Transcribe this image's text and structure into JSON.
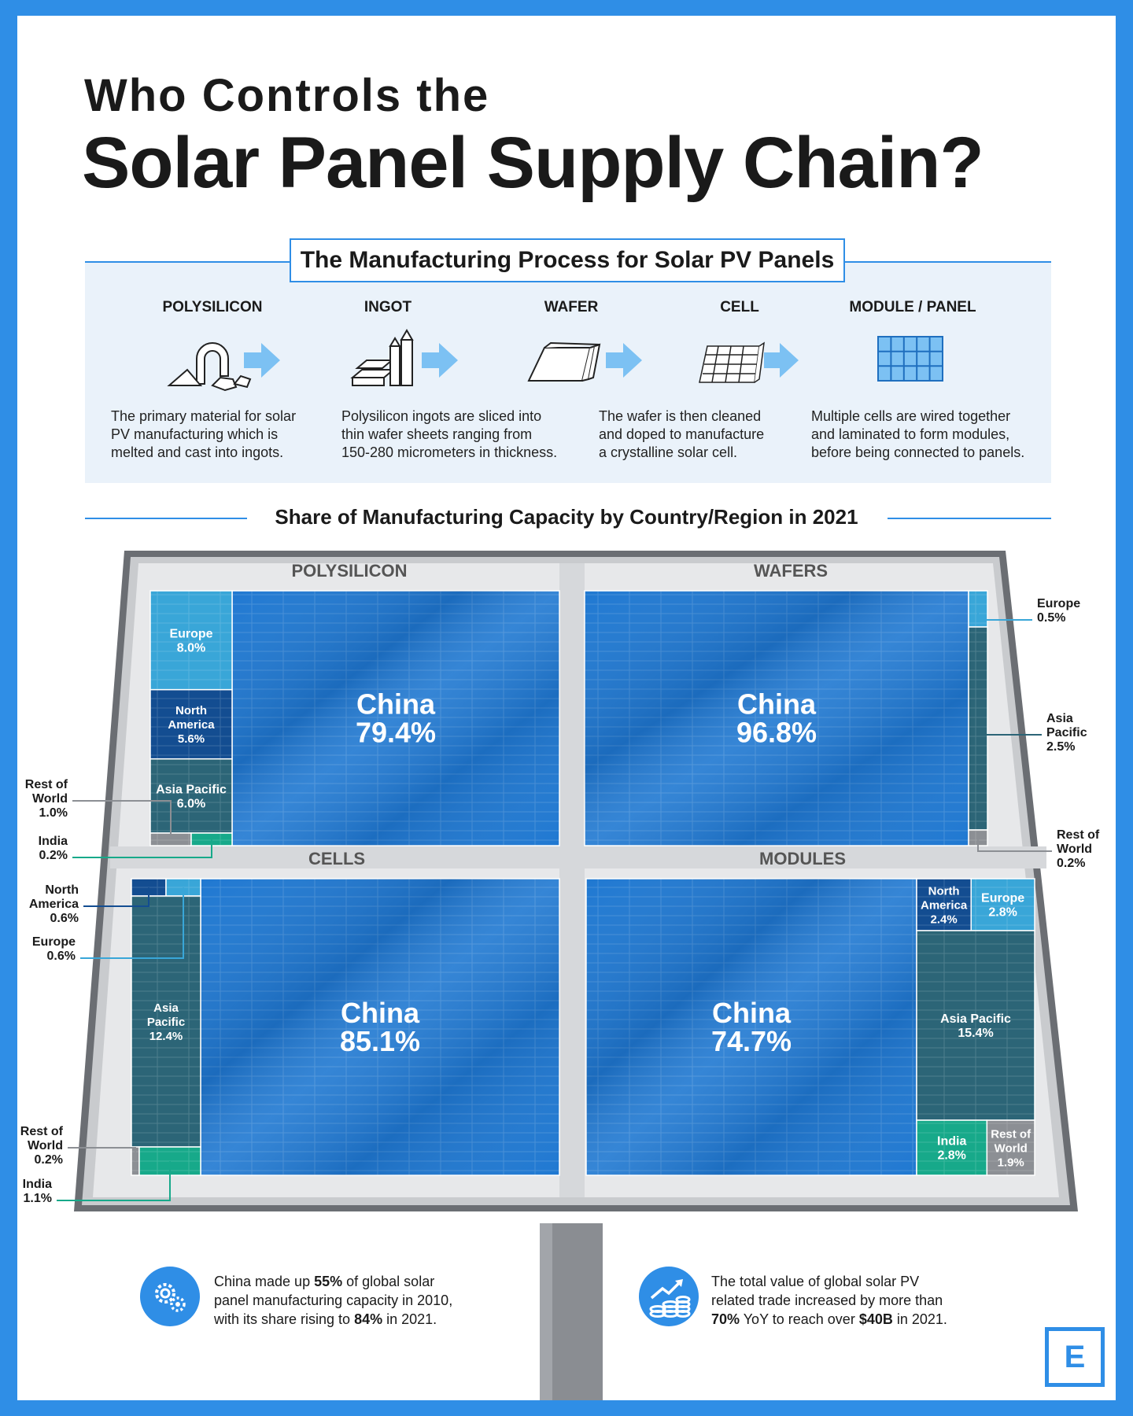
{
  "title": {
    "line1": "Who Controls the",
    "line2": "Solar Panel Supply Chain?"
  },
  "process": {
    "heading": "The Manufacturing Process for Solar PV Panels",
    "steps": [
      {
        "label": "POLYSILICON",
        "icon": "polysilicon-icon",
        "desc": [
          "The primary material for solar",
          "PV manufacturing which is",
          "melted and cast into ingots."
        ]
      },
      {
        "label": "INGOT",
        "icon": "ingot-icon",
        "desc": [
          "Polysilicon ingots are sliced into",
          "thin wafer sheets ranging from",
          "150-280 micrometers in thickness."
        ]
      },
      {
        "label": "WAFER",
        "icon": "wafer-icon",
        "desc": [
          "The wafer is then cleaned",
          "and doped to manufacture",
          "a crystalline solar cell."
        ]
      },
      {
        "label": "CELL",
        "icon": "cell-icon",
        "desc": [
          "Multiple cells are wired together",
          "and laminated to form modules,",
          "before being connected to panels."
        ]
      },
      {
        "label": "MODULE / PANEL",
        "icon": "module-panel-icon",
        "desc": []
      }
    ]
  },
  "capacity_heading": "Share of Manufacturing Capacity by Country/Region in 2021",
  "colors": {
    "china": "#1f78d1",
    "europe": "#39a6d8",
    "north_america": "#134d91",
    "asia_pacific": "#2c6577",
    "india": "#17a98a",
    "rest_of_world": "#8c8f94",
    "accent": "#2f8ee6"
  },
  "chart_data": [
    {
      "type": "treemap",
      "title": "POLYSILICON",
      "series": [
        {
          "name": "China",
          "label": [
            "China",
            "79.4%"
          ],
          "value": 79.4
        },
        {
          "name": "Europe",
          "label": [
            "Europe",
            "8.0%"
          ],
          "value": 8.0
        },
        {
          "name": "North America",
          "label": [
            "North",
            "America",
            "5.6%"
          ],
          "value": 5.6
        },
        {
          "name": "Asia Pacific",
          "label": [
            "Asia Pacific",
            "6.0%"
          ],
          "value": 6.0
        },
        {
          "name": "Rest of World",
          "label": [
            "Rest of",
            "World",
            "1.0%"
          ],
          "value": 1.0
        },
        {
          "name": "India",
          "label": [
            "India",
            "0.2%"
          ],
          "value": 0.2
        }
      ]
    },
    {
      "type": "treemap",
      "title": "WAFERS",
      "series": [
        {
          "name": "China",
          "label": [
            "China",
            "96.8%"
          ],
          "value": 96.8
        },
        {
          "name": "Europe",
          "label": [
            "Europe",
            "0.5%"
          ],
          "value": 0.5
        },
        {
          "name": "Asia Pacific",
          "label": [
            "Asia",
            "Pacific",
            "2.5%"
          ],
          "value": 2.5
        },
        {
          "name": "Rest of World",
          "label": [
            "Rest of",
            "World",
            "0.2%"
          ],
          "value": 0.2
        }
      ]
    },
    {
      "type": "treemap",
      "title": "CELLS",
      "series": [
        {
          "name": "China",
          "label": [
            "China",
            "85.1%"
          ],
          "value": 85.1
        },
        {
          "name": "North America",
          "label": [
            "North",
            "America",
            "0.6%"
          ],
          "value": 0.6
        },
        {
          "name": "Europe",
          "label": [
            "Europe",
            "0.6%"
          ],
          "value": 0.6
        },
        {
          "name": "Asia Pacific",
          "label": [
            "Asia",
            "Pacific",
            "12.4%"
          ],
          "value": 12.4
        },
        {
          "name": "Rest of World",
          "label": [
            "Rest of",
            "World",
            "0.2%"
          ],
          "value": 0.2
        },
        {
          "name": "India",
          "label": [
            "India",
            "1.1%"
          ],
          "value": 1.1
        }
      ]
    },
    {
      "type": "treemap",
      "title": "MODULES",
      "series": [
        {
          "name": "China",
          "label": [
            "China",
            "74.7%"
          ],
          "value": 74.7
        },
        {
          "name": "North America",
          "label": [
            "North",
            "America",
            "2.4%"
          ],
          "value": 2.4
        },
        {
          "name": "Europe",
          "label": [
            "Europe",
            "2.8%"
          ],
          "value": 2.8
        },
        {
          "name": "Asia Pacific",
          "label": [
            "Asia Pacific",
            "15.4%"
          ],
          "value": 15.4
        },
        {
          "name": "India",
          "label": [
            "India",
            "2.8%"
          ],
          "value": 2.8
        },
        {
          "name": "Rest of World",
          "label": [
            "Rest of",
            "World",
            "1.9%"
          ],
          "value": 1.9
        }
      ]
    }
  ],
  "facts": [
    {
      "icon": "gears-icon",
      "lines": [
        [
          "China made up ",
          "55%",
          " of global solar"
        ],
        [
          "panel manufacturing capacity in 2010,"
        ],
        [
          "with its share rising to ",
          "84%",
          " in 2021."
        ]
      ]
    },
    {
      "icon": "growth-coins-icon",
      "lines": [
        [
          "The total value of global solar PV"
        ],
        [
          "related trade increased by more than"
        ],
        [
          "",
          "70%",
          " YoY to reach over ",
          "$40B",
          " in 2021."
        ]
      ]
    }
  ],
  "brand": {
    "logo_text": "E"
  }
}
